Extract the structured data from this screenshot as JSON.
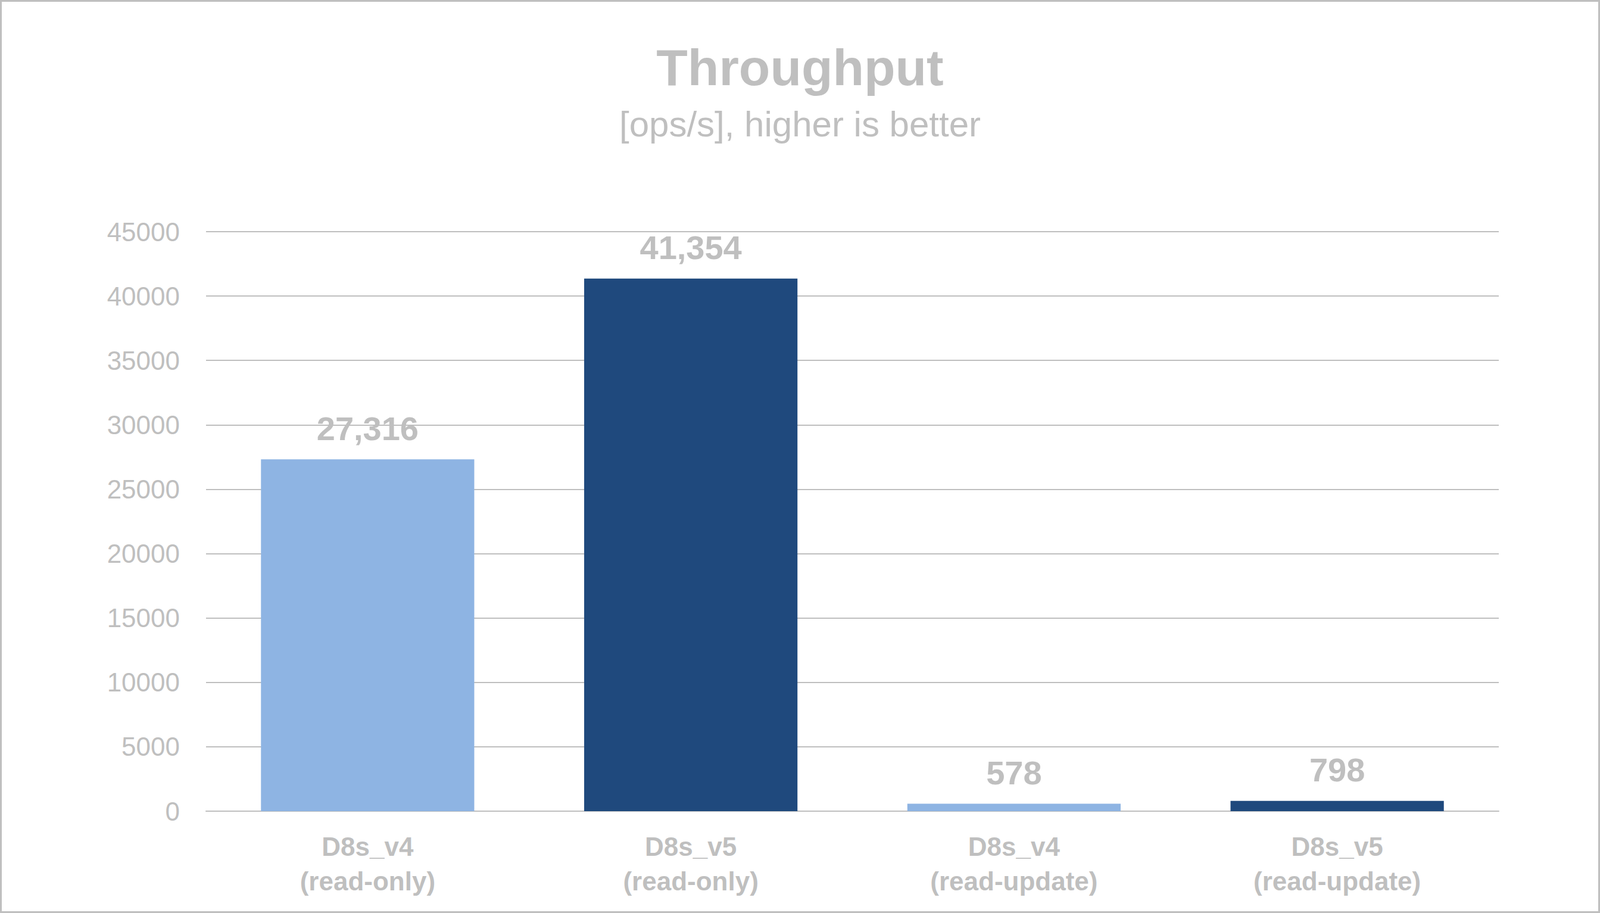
{
  "chart_data": {
    "type": "bar",
    "title": "Throughput",
    "subtitle": "[ops/s], higher is better",
    "categories": [
      "D8s_v4\n(read-only)",
      "D8s_v5\n(read-only)",
      "D8s_v4\n(read-update)",
      "D8s_v5\n(read-update)"
    ],
    "values": [
      27316,
      41354,
      578,
      798
    ],
    "value_labels": [
      "27,316",
      "41,354",
      "578",
      "798"
    ],
    "colors": [
      "#8eb4e3",
      "#1f497d",
      "#8eb4e3",
      "#1f497d"
    ],
    "ylim": [
      0,
      45000
    ],
    "yticks": [
      0,
      5000,
      10000,
      15000,
      20000,
      25000,
      30000,
      35000,
      40000,
      45000
    ],
    "grid": true,
    "data_labels": true
  }
}
